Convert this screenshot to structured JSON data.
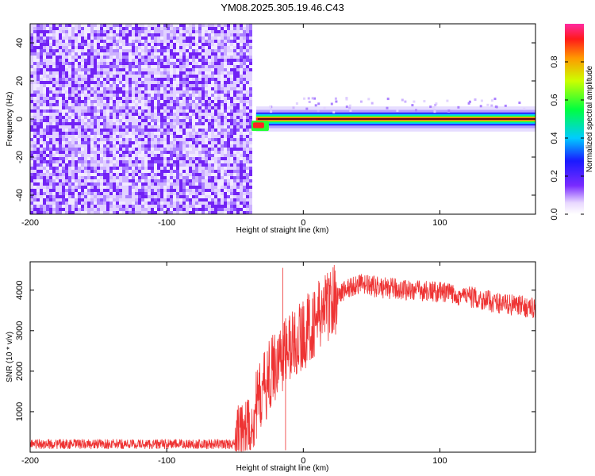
{
  "title": "YM08.2025.305.19.46.C43",
  "chart_data": [
    {
      "type": "heatmap",
      "name": "spectrogram",
      "xlabel": "Height of straight line (km)",
      "ylabel": "Frequency (Hz)",
      "xlim": [
        -200,
        170
      ],
      "ylim": [
        -50,
        50
      ],
      "xticks": [
        -200,
        -100,
        0,
        100
      ],
      "yticks": [
        -40,
        -20,
        0,
        20,
        40
      ],
      "x_tick_labels": [
        "-200",
        "-100",
        "0",
        "100"
      ],
      "y_tick_labels": [
        "-40",
        "-20",
        "0",
        "20",
        "40"
      ],
      "noise_region_x": [
        -200,
        -38
      ],
      "signal_band": {
        "x": [
          -38,
          170
        ],
        "freq_center": 0,
        "freq_halfwidth": 3
      },
      "colorbar": {
        "label": "Normalized spectral amplitude",
        "range": [
          0,
          1
        ],
        "ticks": [
          0.0,
          0.2,
          0.4,
          0.6,
          0.8
        ],
        "tick_labels": [
          "0.0",
          "0.2",
          "0.4",
          "0.6",
          "0.8"
        ],
        "colormap": "rainbow"
      }
    },
    {
      "type": "line",
      "name": "snr",
      "xlabel": "Height of straight line (km)",
      "ylabel": "SNR (10 * v/v)",
      "xlim": [
        -200,
        170
      ],
      "ylim": [
        0,
        4700
      ],
      "xticks": [
        -200,
        -100,
        0,
        100
      ],
      "yticks": [
        1000,
        2000,
        3000,
        4000
      ],
      "x_tick_labels": [
        "-200",
        "-100",
        "0",
        "100"
      ],
      "y_tick_labels": [
        "1000",
        "2000",
        "3000",
        "4000"
      ],
      "color": "#ee3333",
      "trend": {
        "x": [
          -200,
          -50,
          -40,
          -30,
          -20,
          -10,
          0,
          10,
          20,
          30,
          40,
          60,
          80,
          100,
          120,
          140,
          160,
          170
        ],
        "y": [
          200,
          200,
          600,
          1500,
          2200,
          2600,
          2900,
          3300,
          3700,
          4000,
          4150,
          4050,
          4000,
          3950,
          3850,
          3700,
          3600,
          3550
        ]
      },
      "spikes": [
        {
          "x": -15,
          "y": 4550
        },
        {
          "x": -13,
          "y": 50
        }
      ]
    }
  ]
}
